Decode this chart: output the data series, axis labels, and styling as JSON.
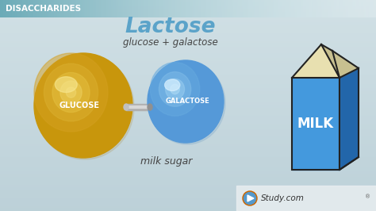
{
  "bg_color_top": "#c8d8dc",
  "bg_color_bottom": "#d8e4e8",
  "header_bg_left": "#7aabb8",
  "header_bg_right": "#e8f0f0",
  "header_text": "DISACCHARIDES",
  "header_text_color": "#ffffff",
  "title_text": "Lactose",
  "title_color": "#5ba3c9",
  "subtitle_text": "glucose + galactose",
  "subtitle_color": "#444444",
  "label_below": "milk sugar",
  "label_below_color": "#444444",
  "glucose_color": "#c8960c",
  "glucose_shadow": "#a07008",
  "glucose_highlight": "#e8c040",
  "galactose_color": "#5599d8",
  "galactose_shadow": "#3377b8",
  "galactose_highlight": "#88c0e8",
  "glucose_label": "GLUCOSE",
  "galactose_label": "GALACTOSE",
  "connector_color": "#a0a0a0",
  "connector_light": "#d0d0d0",
  "milk_front_color": "#4499dd",
  "milk_side_color": "#2266aa",
  "milk_top_color": "#e8e0b0",
  "milk_top_side_color": "#c8c090",
  "milk_carton_outline": "#222222",
  "milk_text": "MILK",
  "milk_text_color": "#ffffff",
  "logo_circle_color": "#cc6600",
  "logo_circle_inner": "#5599cc",
  "footer_bg": "#e8eef0",
  "studycom_text_color": "#333333"
}
